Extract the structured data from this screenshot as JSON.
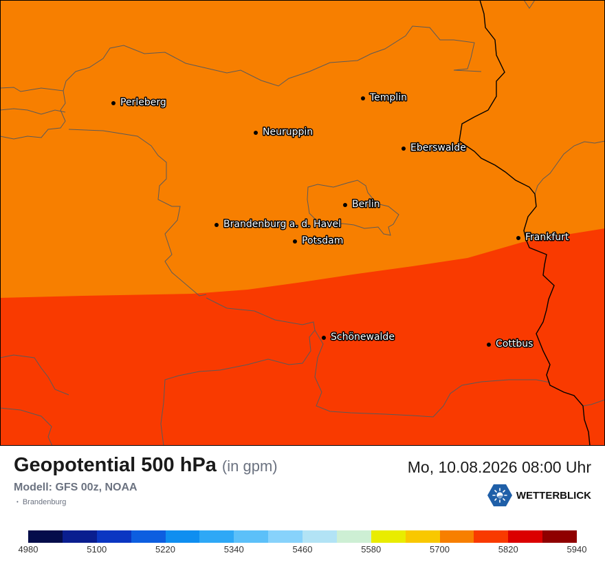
{
  "map": {
    "colors": {
      "band_5700_5760": "#f77f00",
      "band_5760_5820": "#f93a00",
      "border": "#5a5a5a",
      "national_border": "#000000"
    },
    "cities": [
      {
        "name": "Perleberg"
      },
      {
        "name": "Templin"
      },
      {
        "name": "Neuruppin"
      },
      {
        "name": "Eberswalde"
      },
      {
        "name": "Berlin"
      },
      {
        "name": "Brandenburg a. d. Havel"
      },
      {
        "name": "Potsdam"
      },
      {
        "name": "Frankfurt"
      },
      {
        "name": "Schönewalde"
      },
      {
        "name": "Cottbus"
      }
    ]
  },
  "header": {
    "title": "Geopotential 500 hPa",
    "unit": "(in gpm)",
    "model": "Modell: GFS 00z, NOAA",
    "region": "Brandenburg",
    "datetime": "Mo, 10.08.2026 08:00 Uhr",
    "brand": "WETTERBLICK",
    "brand_icon": "sun-logo-icon"
  },
  "legend": {
    "colors": [
      "#050d4a",
      "#0a1e8f",
      "#0b36c2",
      "#0d5ee0",
      "#0f8ef0",
      "#2ea8f6",
      "#5cc0f9",
      "#87d2fb",
      "#b2e3f5",
      "#cdefd4",
      "#e9ec00",
      "#f9c800",
      "#f77f00",
      "#f93a00",
      "#db0000",
      "#8f0000"
    ],
    "ticks": [
      "4980",
      "5100",
      "5220",
      "5340",
      "5460",
      "5580",
      "5700",
      "5820",
      "5940"
    ]
  }
}
